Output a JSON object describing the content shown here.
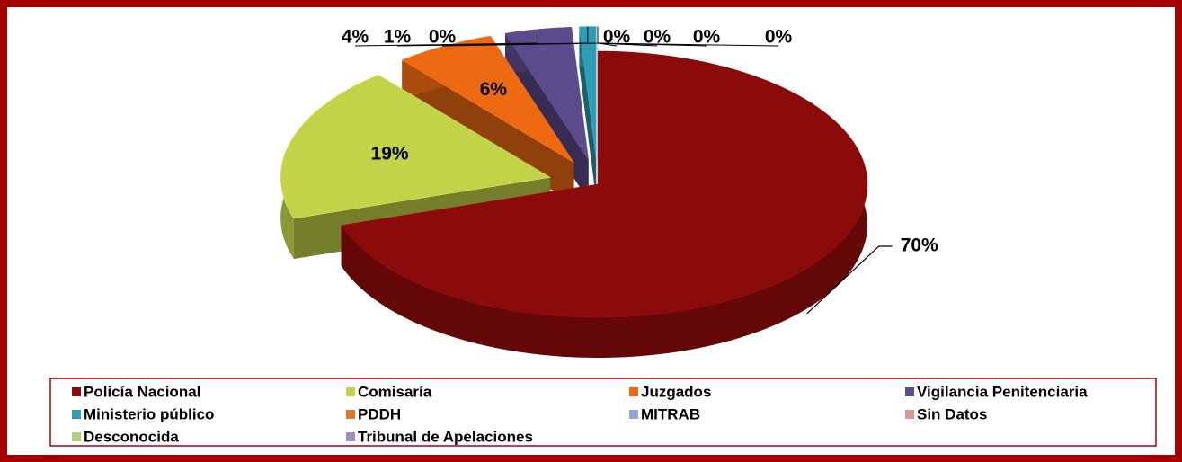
{
  "chart_data": {
    "type": "pie",
    "categories": [
      "Policía Nacional",
      "Comisaría",
      "Juzgados",
      "Vigilancia Penitenciaria",
      "Ministerio público",
      "PDDH",
      "MITRAB",
      "Sin Datos",
      "Desconocida",
      "Tribunal de Apelaciones"
    ],
    "values": [
      70,
      19,
      6,
      4,
      1,
      0,
      0,
      0,
      0,
      0
    ],
    "value_labels": [
      "70%",
      "19%",
      "6%",
      "4%",
      "1%",
      "0%",
      "0%",
      "0%",
      "0%",
      "0%"
    ],
    "colors": [
      "#8b0a0a",
      "#c3d347",
      "#ee6a12",
      "#5b4a8c",
      "#2f9db3",
      "#e0782c",
      "#8ea9d3",
      "#d99694",
      "#b3cd7c",
      "#9d8fc2"
    ],
    "legend": "bottom"
  }
}
